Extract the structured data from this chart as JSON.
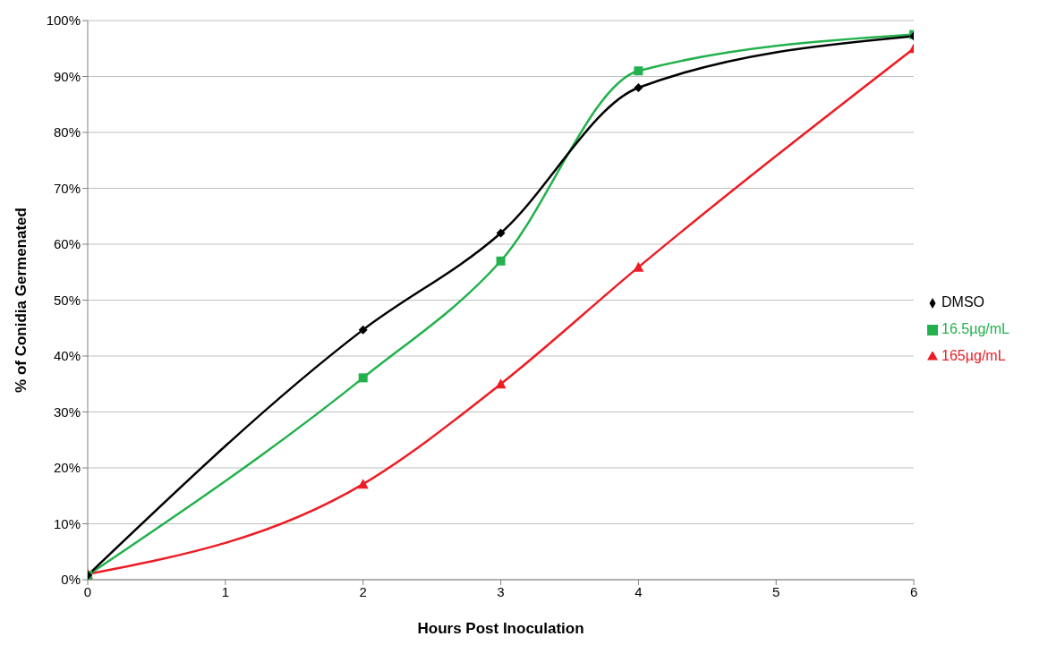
{
  "chart_data": {
    "type": "line",
    "xlabel": "Hours Post Inoculation",
    "ylabel": "% of Conidia Germenated",
    "x": [
      0,
      2,
      3,
      4,
      6
    ],
    "series": [
      {
        "name": "DMSO",
        "color": "#000000",
        "marker": "diamond",
        "values": [
          0.8,
          44.7,
          62.0,
          88.0,
          97.2
        ]
      },
      {
        "name": "16.5µg/mL",
        "color": "#22b14c",
        "marker": "square",
        "values": [
          0.8,
          36.1,
          57.0,
          91.0,
          97.5
        ]
      },
      {
        "name": "165µg/mL",
        "color": "#ed1c24",
        "marker": "triangle",
        "values": [
          1.0,
          17.1,
          35.0,
          55.9,
          95.0
        ]
      }
    ],
    "xlim": [
      0,
      6
    ],
    "xticks": [
      0,
      1,
      2,
      3,
      4,
      5,
      6
    ],
    "ylim": [
      0,
      100
    ],
    "yticks": [
      {
        "value": 0,
        "label": "0%"
      },
      {
        "value": 10,
        "label": "10%"
      },
      {
        "value": 20,
        "label": "20%"
      },
      {
        "value": 30,
        "label": "30%"
      },
      {
        "value": 40,
        "label": "40%"
      },
      {
        "value": 50,
        "label": "50%"
      },
      {
        "value": 60,
        "label": "60%"
      },
      {
        "value": 70,
        "label": "70%"
      },
      {
        "value": 80,
        "label": "80%"
      },
      {
        "value": 90,
        "label": "90%"
      },
      {
        "value": 100,
        "label": "100%"
      }
    ],
    "grid": "y",
    "legend": "right",
    "line_style": "solid"
  }
}
